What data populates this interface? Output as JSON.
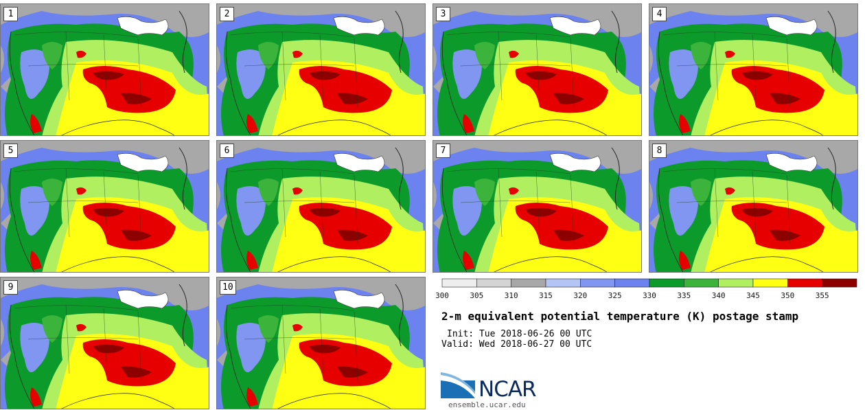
{
  "panels": [
    {
      "label": "1"
    },
    {
      "label": "2"
    },
    {
      "label": "3"
    },
    {
      "label": "4"
    },
    {
      "label": "5"
    },
    {
      "label": "6"
    },
    {
      "label": "7"
    },
    {
      "label": "8"
    },
    {
      "label": "9"
    },
    {
      "label": "10"
    }
  ],
  "colorbar": {
    "ticks": [
      "300",
      "305",
      "310",
      "315",
      "320",
      "325",
      "330",
      "335",
      "340",
      "345",
      "350",
      "355"
    ],
    "colors": [
      "#eeeeee",
      "#d4d4d4",
      "#a8a8a8",
      "#b4c4f4",
      "#8096f0",
      "#6c82ee",
      "#0c9a2a",
      "#3cb43c",
      "#b0f060",
      "#ffff14",
      "#e60000",
      "#8c0000"
    ],
    "unit": "K"
  },
  "title": "2-m equivalent potential temperature (K) postage stamp",
  "init": "Init: Tue 2018-06-26 00 UTC",
  "valid": "Valid: Wed 2018-06-27 00 UTC",
  "logo": {
    "text": "NCAR",
    "url": "ensemble.ucar.edu"
  }
}
